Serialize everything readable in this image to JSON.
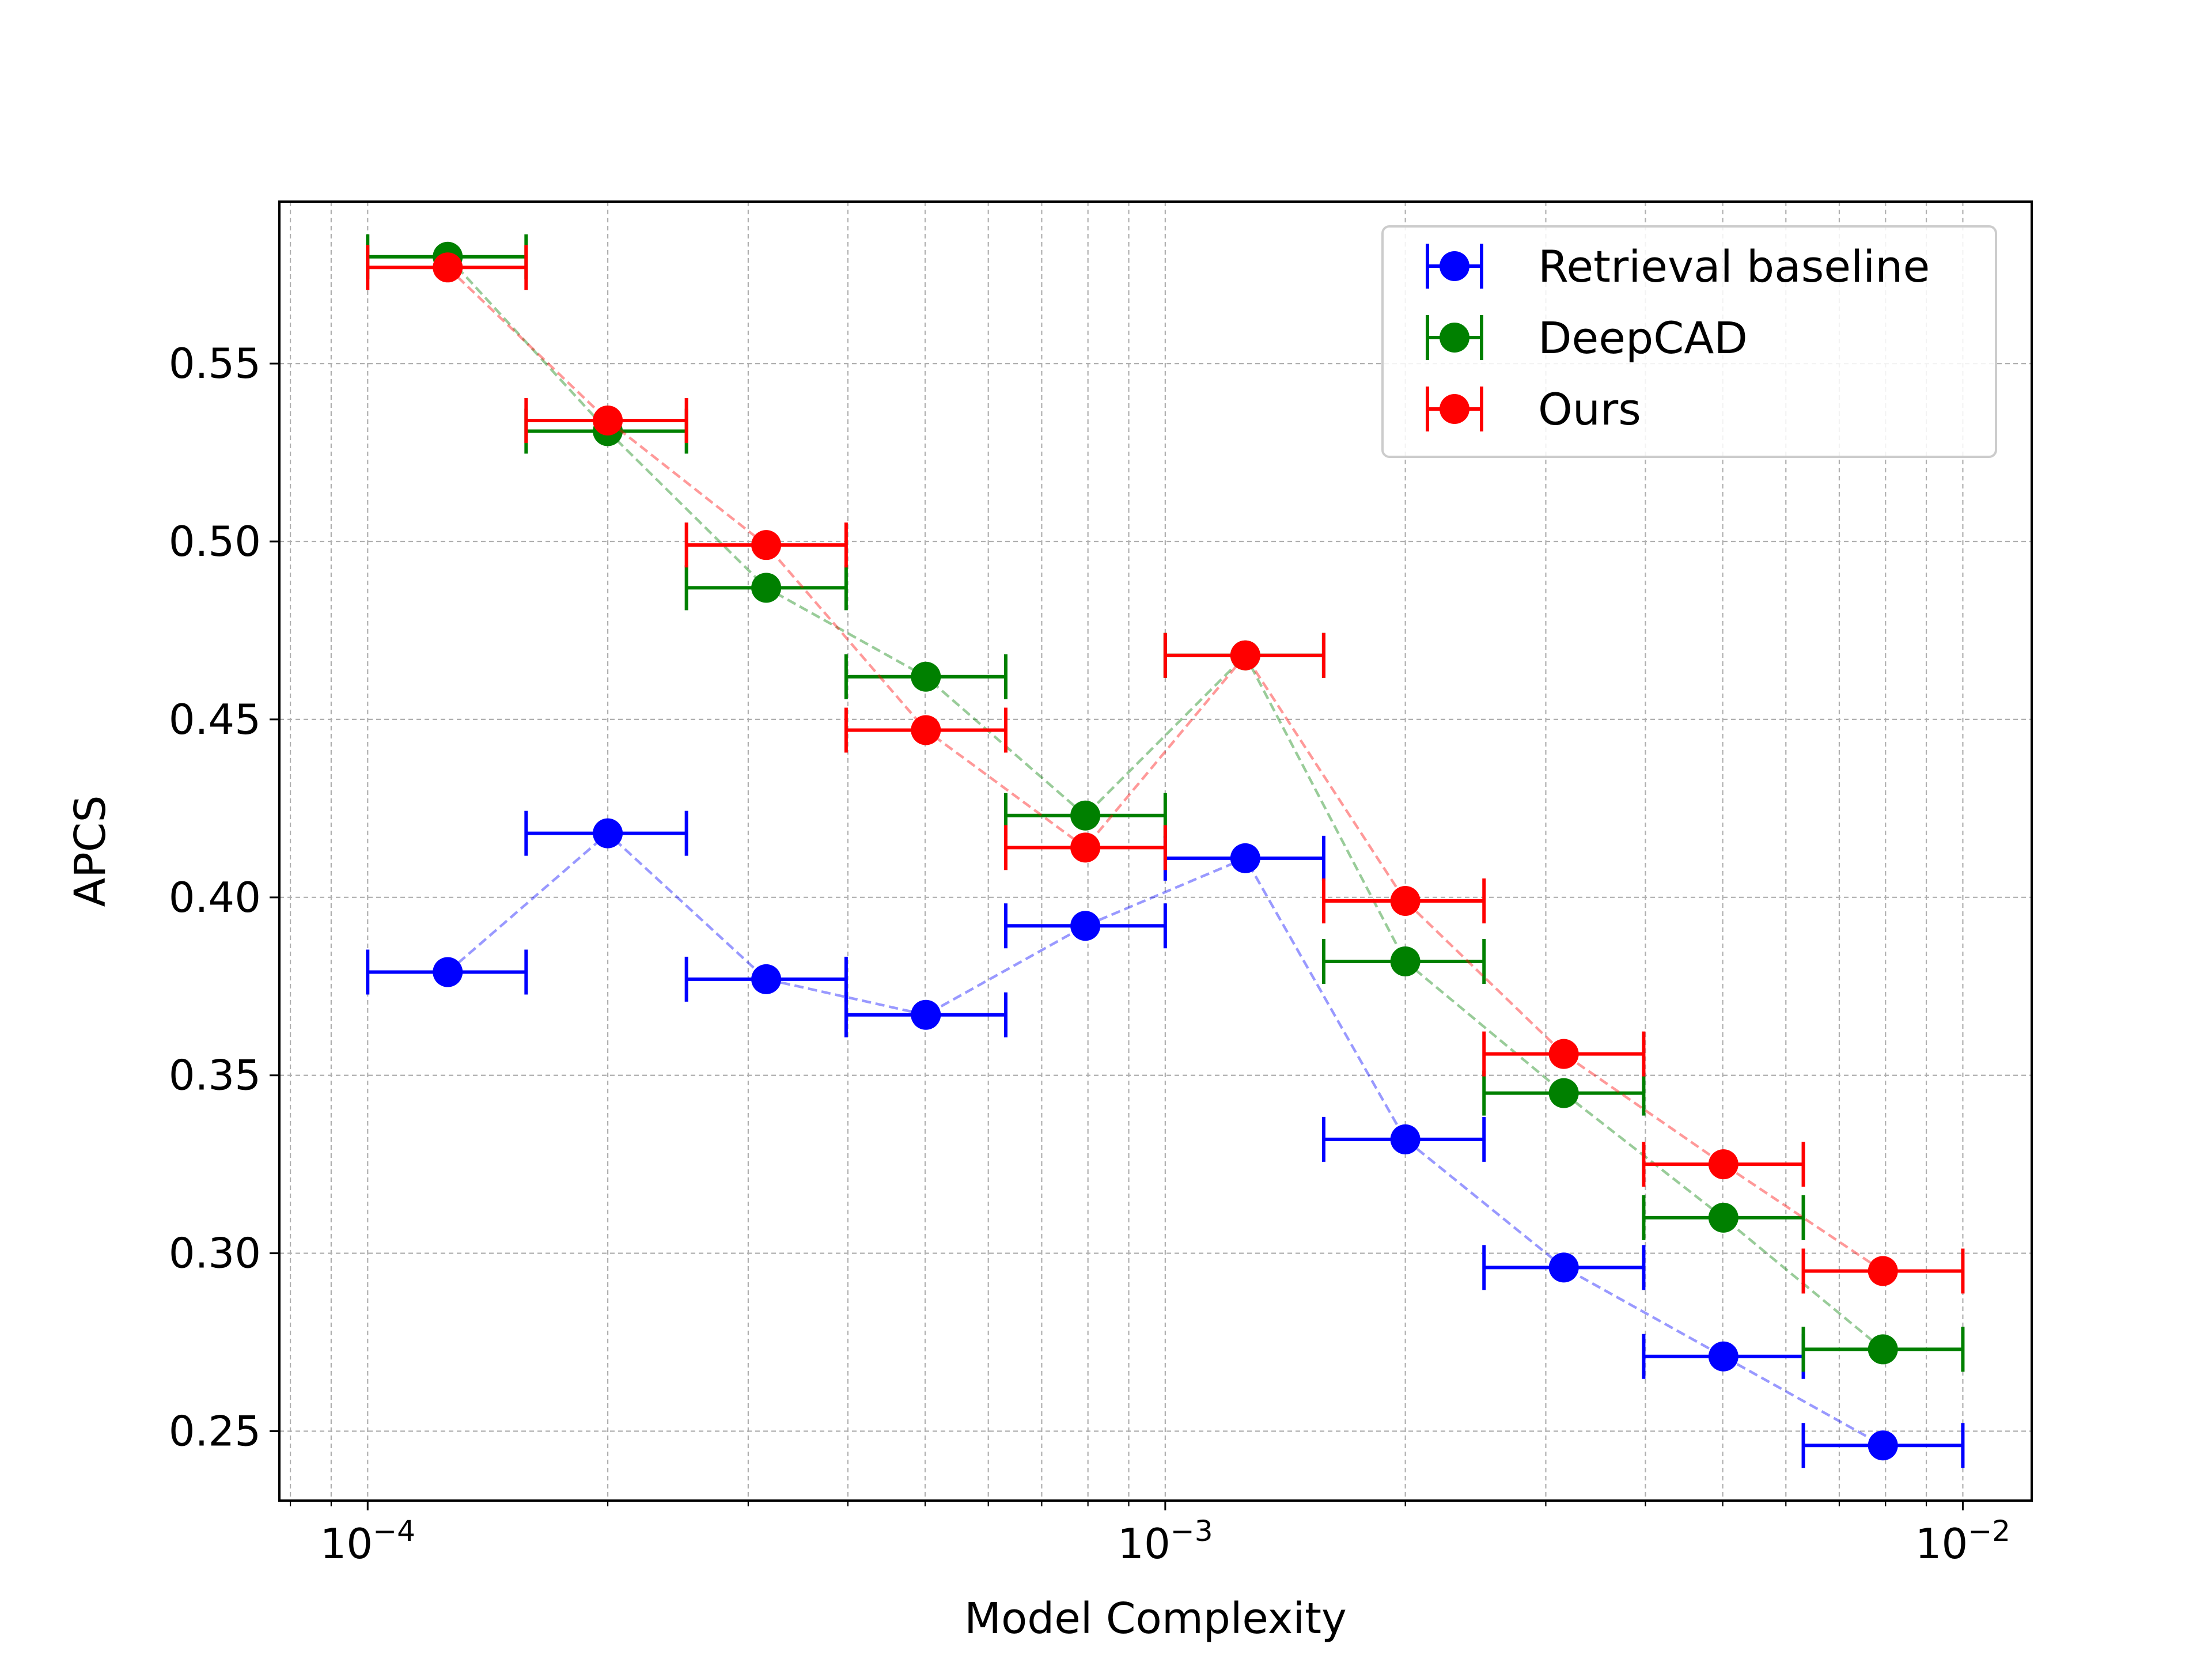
{
  "chart_data": {
    "type": "scatter",
    "title": "",
    "xlabel": "Model Complexity",
    "ylabel": "APCS",
    "xscale": "log",
    "xlim": [
      7.75e-05,
      0.0122
    ],
    "ylim": [
      0.2305,
      0.5955
    ],
    "grid": true,
    "legend_position": "top-right",
    "x_tick_labels": [
      {
        "value": 0.0001,
        "base": "10",
        "exponent": "−4"
      },
      {
        "value": 0.001,
        "base": "10",
        "exponent": "−3"
      },
      {
        "value": 0.01,
        "base": "10",
        "exponent": "−2"
      }
    ],
    "y_ticks": [
      0.25,
      0.3,
      0.35,
      0.4,
      0.45,
      0.5,
      0.55
    ],
    "y_tick_labels": [
      "0.25",
      "0.30",
      "0.35",
      "0.40",
      "0.45",
      "0.50",
      "0.55"
    ],
    "bin_edges": [
      0.0001,
      0.000158,
      0.000251,
      0.000398,
      0.000631,
      0.001,
      0.00158,
      0.00251,
      0.00398,
      0.00631,
      0.01
    ],
    "x": [
      0.000126,
      0.0002,
      0.000316,
      0.000501,
      0.000794,
      0.00126,
      0.002,
      0.00316,
      0.00501,
      0.00794
    ],
    "series": [
      {
        "name": "Retrieval baseline",
        "color": "#0000ff",
        "values": [
          0.379,
          0.418,
          0.377,
          0.367,
          0.392,
          0.411,
          0.332,
          0.296,
          0.271,
          0.246
        ]
      },
      {
        "name": "DeepCAD",
        "color": "#008000",
        "values": [
          0.58,
          0.531,
          0.487,
          0.462,
          0.423,
          0.468,
          0.382,
          0.345,
          0.31,
          0.273
        ]
      },
      {
        "name": "Ours",
        "color": "#ff0000",
        "values": [
          0.577,
          0.534,
          0.499,
          0.447,
          0.414,
          0.468,
          0.399,
          0.356,
          0.325,
          0.295
        ]
      }
    ]
  }
}
